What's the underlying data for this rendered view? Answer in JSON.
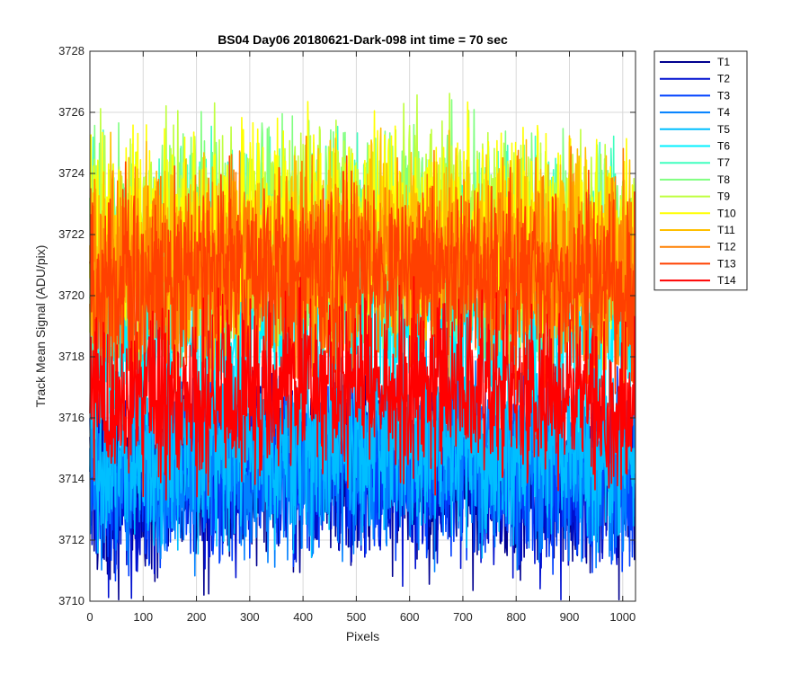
{
  "chart_data": {
    "type": "line",
    "title": "BS04 Day06 20180621-Dark-098 int time = 70 sec",
    "xlabel": "Pixels",
    "ylabel": "Track Mean Signal (ADU/pix)",
    "xlim": [
      0,
      1024
    ],
    "ylim": [
      3710,
      3728
    ],
    "xticks": [
      0,
      100,
      200,
      300,
      400,
      500,
      600,
      700,
      800,
      900,
      1000
    ],
    "yticks": [
      3710,
      3712,
      3714,
      3716,
      3718,
      3720,
      3722,
      3724,
      3726,
      3728
    ],
    "grid": true,
    "legend_position": "outside-right",
    "points_per_series": 1024,
    "series": [
      {
        "name": "T1",
        "color": "#00008F",
        "mean": 3713.9,
        "noise_amplitude": 1.4
      },
      {
        "name": "T2",
        "color": "#0010D0",
        "mean": 3714.0,
        "noise_amplitude": 1.4
      },
      {
        "name": "T3",
        "color": "#0040FF",
        "mean": 3714.2,
        "noise_amplitude": 1.4
      },
      {
        "name": "T4",
        "color": "#0080FF",
        "mean": 3714.4,
        "noise_amplitude": 1.5
      },
      {
        "name": "T5",
        "color": "#00BFFF",
        "mean": 3715.0,
        "noise_amplitude": 1.5
      },
      {
        "name": "T6",
        "color": "#00F0FF",
        "mean": 3719.0,
        "noise_amplitude": 1.5
      },
      {
        "name": "T7",
        "color": "#40FFBF",
        "mean": 3721.5,
        "noise_amplitude": 1.6
      },
      {
        "name": "T8",
        "color": "#80FF80",
        "mean": 3721.8,
        "noise_amplitude": 1.6
      },
      {
        "name": "T9",
        "color": "#BFFF40",
        "mean": 3722.0,
        "noise_amplitude": 1.6
      },
      {
        "name": "T10",
        "color": "#FFFF00",
        "mean": 3722.0,
        "noise_amplitude": 1.6
      },
      {
        "name": "T11",
        "color": "#FFBF00",
        "mean": 3721.3,
        "noise_amplitude": 1.6
      },
      {
        "name": "T12",
        "color": "#FF8000",
        "mean": 3720.8,
        "noise_amplitude": 1.6
      },
      {
        "name": "T13",
        "color": "#FF4000",
        "mean": 3720.4,
        "noise_amplitude": 1.5
      },
      {
        "name": "T14",
        "color": "#FF0000",
        "mean": 3716.8,
        "noise_amplitude": 1.4
      }
    ]
  }
}
